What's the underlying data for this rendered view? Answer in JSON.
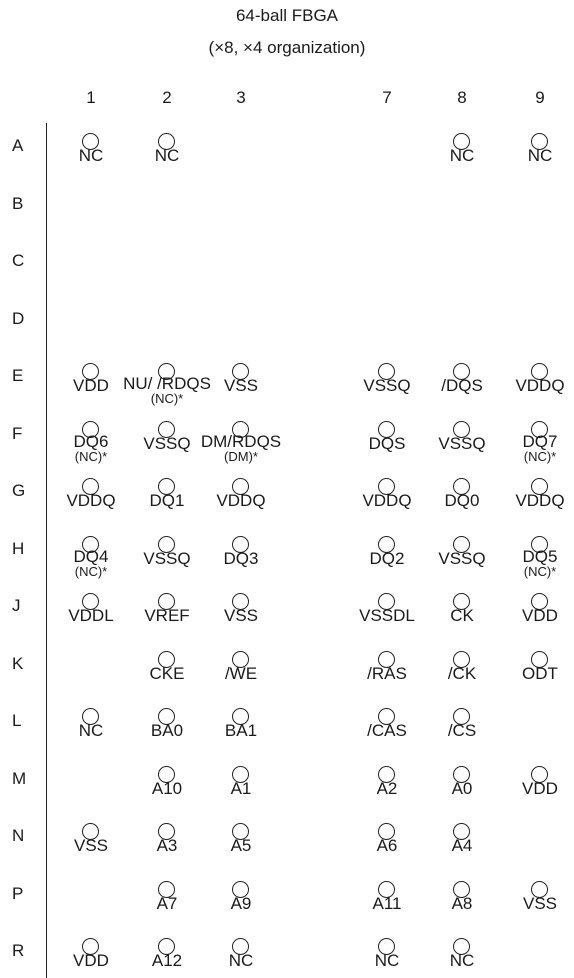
{
  "title": "64-ball FBGA",
  "subtitle": "(×8, ×4 organization)",
  "columns": [
    "1",
    "2",
    "3",
    "7",
    "8",
    "9"
  ],
  "rows": [
    "A",
    "B",
    "C",
    "D",
    "E",
    "F",
    "G",
    "H",
    "J",
    "K",
    "L",
    "M",
    "N",
    "P",
    "R"
  ],
  "balls": [
    {
      "row": "A",
      "col": "1",
      "label": "NC"
    },
    {
      "row": "A",
      "col": "2",
      "label": "NC"
    },
    {
      "row": "A",
      "col": "8",
      "label": "NC"
    },
    {
      "row": "A",
      "col": "9",
      "label": "NC"
    },
    {
      "row": "E",
      "col": "1",
      "label": "VDD"
    },
    {
      "row": "E",
      "col": "2",
      "label": "NU/ /RDQS",
      "sub": "(NC)*"
    },
    {
      "row": "E",
      "col": "3",
      "label": "VSS"
    },
    {
      "row": "E",
      "col": "7",
      "label": "VSSQ"
    },
    {
      "row": "E",
      "col": "8",
      "label": "/DQS"
    },
    {
      "row": "E",
      "col": "9",
      "label": "VDDQ"
    },
    {
      "row": "F",
      "col": "1",
      "label": "DQ6",
      "sub": "(NC)*"
    },
    {
      "row": "F",
      "col": "2",
      "label": "VSSQ"
    },
    {
      "row": "F",
      "col": "3",
      "label": "DM/RDQS",
      "sub": "(DM)*"
    },
    {
      "row": "F",
      "col": "7",
      "label": "DQS"
    },
    {
      "row": "F",
      "col": "8",
      "label": "VSSQ"
    },
    {
      "row": "F",
      "col": "9",
      "label": "DQ7",
      "sub": "(NC)*"
    },
    {
      "row": "G",
      "col": "1",
      "label": "VDDQ"
    },
    {
      "row": "G",
      "col": "2",
      "label": "DQ1"
    },
    {
      "row": "G",
      "col": "3",
      "label": "VDDQ"
    },
    {
      "row": "G",
      "col": "7",
      "label": "VDDQ"
    },
    {
      "row": "G",
      "col": "8",
      "label": "DQ0"
    },
    {
      "row": "G",
      "col": "9",
      "label": "VDDQ"
    },
    {
      "row": "H",
      "col": "1",
      "label": "DQ4",
      "sub": "(NC)*"
    },
    {
      "row": "H",
      "col": "2",
      "label": "VSSQ"
    },
    {
      "row": "H",
      "col": "3",
      "label": "DQ3"
    },
    {
      "row": "H",
      "col": "7",
      "label": "DQ2"
    },
    {
      "row": "H",
      "col": "8",
      "label": "VSSQ"
    },
    {
      "row": "H",
      "col": "9",
      "label": "DQ5",
      "sub": "(NC)*"
    },
    {
      "row": "J",
      "col": "1",
      "label": "VDDL"
    },
    {
      "row": "J",
      "col": "2",
      "label": "VREF"
    },
    {
      "row": "J",
      "col": "3",
      "label": "VSS"
    },
    {
      "row": "J",
      "col": "7",
      "label": "VSSDL"
    },
    {
      "row": "J",
      "col": "8",
      "label": "CK"
    },
    {
      "row": "J",
      "col": "9",
      "label": "VDD"
    },
    {
      "row": "K",
      "col": "2",
      "label": "CKE"
    },
    {
      "row": "K",
      "col": "3",
      "label": "/WE"
    },
    {
      "row": "K",
      "col": "7",
      "label": "/RAS"
    },
    {
      "row": "K",
      "col": "8",
      "label": "/CK"
    },
    {
      "row": "K",
      "col": "9",
      "label": "ODT"
    },
    {
      "row": "L",
      "col": "1",
      "label": "NC"
    },
    {
      "row": "L",
      "col": "2",
      "label": "BA0"
    },
    {
      "row": "L",
      "col": "3",
      "label": "BA1"
    },
    {
      "row": "L",
      "col": "7",
      "label": "/CAS"
    },
    {
      "row": "L",
      "col": "8",
      "label": "/CS"
    },
    {
      "row": "M",
      "col": "2",
      "label": "A10"
    },
    {
      "row": "M",
      "col": "3",
      "label": "A1"
    },
    {
      "row": "M",
      "col": "7",
      "label": "A2"
    },
    {
      "row": "M",
      "col": "8",
      "label": "A0"
    },
    {
      "row": "M",
      "col": "9",
      "label": "VDD"
    },
    {
      "row": "N",
      "col": "1",
      "label": "VSS"
    },
    {
      "row": "N",
      "col": "2",
      "label": "A3"
    },
    {
      "row": "N",
      "col": "3",
      "label": "A5"
    },
    {
      "row": "N",
      "col": "7",
      "label": "A6"
    },
    {
      "row": "N",
      "col": "8",
      "label": "A4"
    },
    {
      "row": "P",
      "col": "2",
      "label": "A7"
    },
    {
      "row": "P",
      "col": "3",
      "label": "A9"
    },
    {
      "row": "P",
      "col": "7",
      "label": "A11"
    },
    {
      "row": "P",
      "col": "8",
      "label": "A8"
    },
    {
      "row": "P",
      "col": "9",
      "label": "VSS"
    },
    {
      "row": "R",
      "col": "1",
      "label": "VDD"
    },
    {
      "row": "R",
      "col": "2",
      "label": "A12"
    },
    {
      "row": "R",
      "col": "3",
      "label": "NC"
    },
    {
      "row": "R",
      "col": "7",
      "label": "NC"
    },
    {
      "row": "R",
      "col": "8",
      "label": "NC"
    }
  ]
}
